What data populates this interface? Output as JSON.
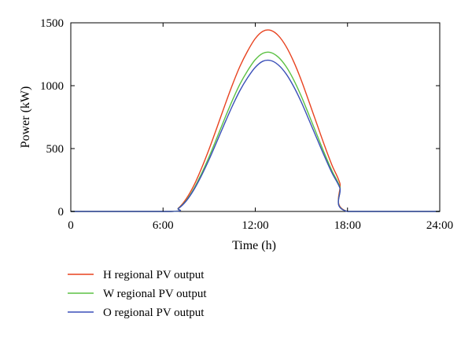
{
  "chart_data": {
    "type": "line",
    "title": "",
    "xlabel": "Time (h)",
    "ylabel": "Power (kW)",
    "xlim": [
      0,
      24
    ],
    "ylim": [
      0,
      1500
    ],
    "x_ticks": [
      {
        "value": 0,
        "label": "0"
      },
      {
        "value": 6,
        "label": "6:00"
      },
      {
        "value": 12,
        "label": "12:00"
      },
      {
        "value": 18,
        "label": "18:00"
      },
      {
        "value": 24,
        "label": "24:00"
      }
    ],
    "y_ticks": [
      {
        "value": 0,
        "label": "0"
      },
      {
        "value": 500,
        "label": "500"
      },
      {
        "value": 1000,
        "label": "1000"
      },
      {
        "value": 1500,
        "label": "1500"
      }
    ],
    "grid": false,
    "legend_position": "bottom-left, below plot",
    "x": [
      0,
      6.5,
      7,
      7.5,
      8,
      8.5,
      9,
      9.5,
      10,
      10.5,
      11,
      11.5,
      12,
      12.5,
      13,
      13.5,
      14,
      14.5,
      15,
      15.5,
      16,
      16.5,
      17,
      17.5,
      18,
      24
    ],
    "series": [
      {
        "name": "H regional PV output",
        "color": "#e8421f",
        "values": [
          0,
          0,
          27,
          99,
          205,
          342,
          497,
          665,
          837,
          1003,
          1153,
          1275,
          1375,
          1433,
          1440,
          1398,
          1313,
          1191,
          1041,
          871,
          698,
          526,
          365,
          226,
          0,
          0
        ]
      },
      {
        "name": "W regional PV output",
        "color": "#5cc144",
        "values": [
          0,
          0,
          25,
          86,
          180,
          300,
          436,
          584,
          735,
          880,
          1012,
          1119,
          1207,
          1258,
          1264,
          1227,
          1153,
          1046,
          914,
          765,
          613,
          462,
          320,
          198,
          0,
          0
        ]
      },
      {
        "name": "O regional PV output",
        "color": "#3a4fb8",
        "values": [
          0,
          0,
          24,
          82,
          171,
          285,
          414,
          555,
          698,
          836,
          961,
          1063,
          1146,
          1195,
          1200,
          1165,
          1095,
          993,
          868,
          726,
          582,
          439,
          304,
          188,
          0,
          0
        ]
      }
    ]
  }
}
